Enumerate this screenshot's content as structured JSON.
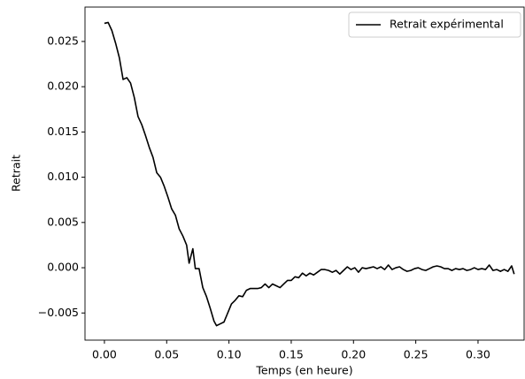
{
  "chart_data": {
    "type": "line",
    "xlabel": "Temps (en heure)",
    "ylabel": "Retrait",
    "x": [
      0.0,
      0.003,
      0.006,
      0.009,
      0.012,
      0.015,
      0.018,
      0.021,
      0.024,
      0.027,
      0.03,
      0.033,
      0.036,
      0.039,
      0.042,
      0.045,
      0.048,
      0.051,
      0.054,
      0.057,
      0.06,
      0.063,
      0.066,
      0.068,
      0.071,
      0.073,
      0.076,
      0.079,
      0.082,
      0.085,
      0.088,
      0.09,
      0.093,
      0.096,
      0.099,
      0.102,
      0.105,
      0.108,
      0.111,
      0.114,
      0.117,
      0.12,
      0.123,
      0.126,
      0.129,
      0.132,
      0.135,
      0.138,
      0.141,
      0.144,
      0.147,
      0.15,
      0.153,
      0.156,
      0.159,
      0.162,
      0.165,
      0.168,
      0.171,
      0.174,
      0.177,
      0.18,
      0.183,
      0.186,
      0.189,
      0.192,
      0.195,
      0.198,
      0.201,
      0.204,
      0.207,
      0.21,
      0.213,
      0.216,
      0.219,
      0.222,
      0.225,
      0.228,
      0.231,
      0.234,
      0.237,
      0.24,
      0.243,
      0.246,
      0.249,
      0.252,
      0.255,
      0.258,
      0.261,
      0.264,
      0.267,
      0.27,
      0.273,
      0.276,
      0.279,
      0.282,
      0.285,
      0.288,
      0.291,
      0.294,
      0.297,
      0.3,
      0.303,
      0.306,
      0.309,
      0.312,
      0.315,
      0.318,
      0.321,
      0.324,
      0.327,
      0.329
    ],
    "series": [
      {
        "name": "Retrait expérimental",
        "color": "#000000",
        "values": [
          0.027,
          0.0271,
          0.0262,
          0.0248,
          0.0232,
          0.0208,
          0.021,
          0.0204,
          0.0188,
          0.0167,
          0.0158,
          0.0146,
          0.0133,
          0.0122,
          0.0105,
          0.01,
          0.009,
          0.0078,
          0.0065,
          0.0058,
          0.0043,
          0.0035,
          0.0025,
          0.0005,
          0.0021,
          -0.0001,
          -0.0001,
          -0.0022,
          -0.0032,
          -0.0045,
          -0.0059,
          -0.0064,
          -0.0062,
          -0.006,
          -0.005,
          -0.004,
          -0.0036,
          -0.0031,
          -0.0032,
          -0.0025,
          -0.0023,
          -0.0023,
          -0.0023,
          -0.0022,
          -0.0018,
          -0.0022,
          -0.0018,
          -0.002,
          -0.0022,
          -0.0018,
          -0.0014,
          -0.0014,
          -0.001,
          -0.0011,
          -0.0006,
          -0.0009,
          -0.0006,
          -0.0008,
          -0.0005,
          -0.0002,
          -0.0002,
          -0.0003,
          -0.0005,
          -0.0003,
          -0.0007,
          -0.0003,
          0.0001,
          -0.0002,
          0.0,
          -0.0005,
          0.0,
          -0.0001,
          0.0,
          0.0001,
          -0.0001,
          0.0001,
          -0.0002,
          0.0003,
          -0.0002,
          0.0,
          0.0001,
          -0.0002,
          -0.0004,
          -0.0003,
          -0.0001,
          0.0,
          -0.0002,
          -0.0003,
          -0.0001,
          0.0001,
          0.0002,
          0.0001,
          -0.0001,
          -0.0001,
          -0.0003,
          -0.0001,
          -0.0002,
          -0.0001,
          -0.0003,
          -0.0002,
          0.0,
          -0.0002,
          -0.0001,
          -0.0002,
          0.0003,
          -0.0003,
          -0.0002,
          -0.0004,
          -0.0002,
          -0.0004,
          0.0002,
          -0.0007
        ]
      }
    ],
    "xlim": [
      -0.0156,
      0.337
    ],
    "ylim": [
      -0.008,
      0.0288
    ],
    "xticks": [
      {
        "value": 0,
        "label": "0.00"
      },
      0.05,
      {
        "value": 0.1,
        "label": "0.10"
      },
      0.15,
      {
        "value": 0.2,
        "label": "0.20"
      },
      0.25,
      {
        "value": 0.3,
        "label": "0.30"
      }
    ],
    "yticks": [
      {
        "value": -0.005,
        "label": "−0.005"
      },
      {
        "value": 0,
        "label": "0.000"
      },
      0.005,
      {
        "value": 0.01,
        "label": "0.010"
      },
      0.015,
      {
        "value": 0.02,
        "label": "0.020"
      },
      0.025
    ],
    "legend": "upper right",
    "grid": false
  }
}
